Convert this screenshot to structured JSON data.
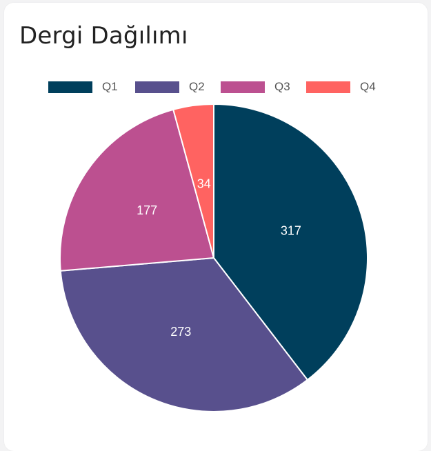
{
  "chart_data": {
    "type": "pie",
    "title": "Dergi Dağılımı",
    "categories": [
      "Q1",
      "Q2",
      "Q3",
      "Q4"
    ],
    "values": [
      317,
      273,
      177,
      34
    ],
    "colors": [
      "#003f5c",
      "#58508d",
      "#bc5090",
      "#ff6361"
    ],
    "legend_position": "top",
    "data_labels": [
      "317",
      "273",
      "177",
      "34"
    ]
  }
}
